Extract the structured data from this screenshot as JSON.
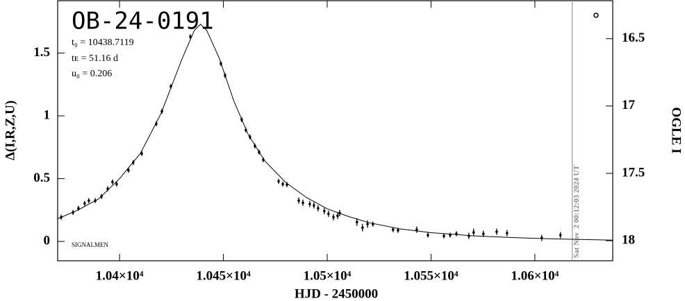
{
  "chart_data": {
    "type": "scatter",
    "title": "OB-24-0191",
    "annotations": [
      "t₀ = 10438.7119",
      "tᴇ = 51.16 d",
      "u₀ = 0.206",
      "SIGNALMEN"
    ],
    "timestamp": {
      "text": "Sat Nov  2 00:12:03 2024 UT",
      "x": 10618.0
    },
    "xlabel": "HJD - 2450000",
    "ylabel": "Δ(I,R,Z,U)",
    "y2label": "OGLE I",
    "color": "#000000",
    "x": [
      10371.9,
      10377.6,
      10380.2,
      10383.2,
      10385.2,
      10388.3,
      10391.3,
      10394.3,
      10396.6,
      10398.6,
      10404.3,
      10406.6,
      10410.7,
      10417.7,
      10420.4,
      10424.7,
      10434.1,
      10448.8,
      10450.8,
      10458.8,
      10460.8,
      10462.8,
      10465.2,
      10467.2,
      10469.2,
      10476.6,
      10478.6,
      10480.6,
      10486.3,
      10488.3,
      10491.6,
      10493.6,
      10495.6,
      10498.6,
      10500.6,
      10503.0,
      10505.0,
      10506.0,
      10514.3,
      10517.0,
      10519.4,
      10522.0,
      10531.7,
      10534.1,
      10543.1,
      10548.5,
      10556.2,
      10559.2,
      10562.2,
      10568.2,
      10570.5,
      10575.2,
      10581.6,
      10586.6,
      10603.3,
      10612.3
    ],
    "values": [
      0.193,
      0.231,
      0.264,
      0.303,
      0.325,
      0.325,
      0.358,
      0.419,
      0.474,
      0.457,
      0.567,
      0.628,
      0.7,
      0.937,
      1.036,
      1.234,
      1.631,
      1.416,
      1.322,
      0.97,
      0.887,
      0.832,
      0.76,
      0.711,
      0.65,
      0.479,
      0.457,
      0.452,
      0.325,
      0.308,
      0.298,
      0.287,
      0.264,
      0.242,
      0.22,
      0.193,
      0.204,
      0.226,
      0.154,
      0.11,
      0.138,
      0.138,
      0.094,
      0.088,
      0.094,
      0.05,
      0.044,
      0.05,
      0.061,
      0.044,
      0.072,
      0.061,
      0.077,
      0.066,
      0.028,
      0.05
    ],
    "errors": [
      0.02,
      0.02,
      0.02,
      0.02,
      0.02,
      0.02,
      0.02,
      0.02,
      0.02,
      0.02,
      0.02,
      0.02,
      0.02,
      0.02,
      0.02,
      0.02,
      0.02,
      0.02,
      0.02,
      0.02,
      0.02,
      0.02,
      0.02,
      0.02,
      0.02,
      0.02,
      0.02,
      0.02,
      0.025,
      0.025,
      0.025,
      0.025,
      0.025,
      0.025,
      0.025,
      0.025,
      0.025,
      0.025,
      0.03,
      0.03,
      0.03,
      0.02,
      0.02,
      0.02,
      0.025,
      0.02,
      0.02,
      0.02,
      0.02,
      0.025,
      0.03,
      0.025,
      0.025,
      0.025,
      0.025,
      0.025
    ],
    "model": {
      "x": [
        10370.2,
        10380,
        10390,
        10400,
        10410,
        10420,
        10430,
        10436,
        10439,
        10442,
        10448,
        10455,
        10462,
        10470,
        10480,
        10490,
        10500,
        10510,
        10520,
        10535,
        10550,
        10570,
        10590,
        10610,
        10637.5
      ],
      "values": [
        0.18,
        0.25,
        0.34,
        0.5,
        0.7,
        1.02,
        1.45,
        1.68,
        1.73,
        1.68,
        1.46,
        1.12,
        0.85,
        0.64,
        0.47,
        0.35,
        0.26,
        0.2,
        0.15,
        0.1,
        0.07,
        0.045,
        0.03,
        0.02,
        0.01
      ]
    },
    "xlim": [
      10370.2,
      10637.5
    ],
    "xticks": [
      {
        "value": 10400,
        "label": "1.04×10⁴"
      },
      {
        "value": 10450,
        "label": "1.045×10⁴"
      },
      {
        "value": 10500,
        "label": "1.05×10⁴"
      },
      {
        "value": 10550,
        "label": "1.055×10⁴"
      },
      {
        "value": 10600,
        "label": "1.06×10⁴"
      }
    ],
    "ylim": [
      -0.154,
      1.917
    ],
    "yticks": [
      0,
      0.5,
      1,
      1.5
    ],
    "y2lim": [
      18.149,
      16.218
    ],
    "y2ticks": [
      16.5,
      17,
      17.5,
      18
    ]
  }
}
